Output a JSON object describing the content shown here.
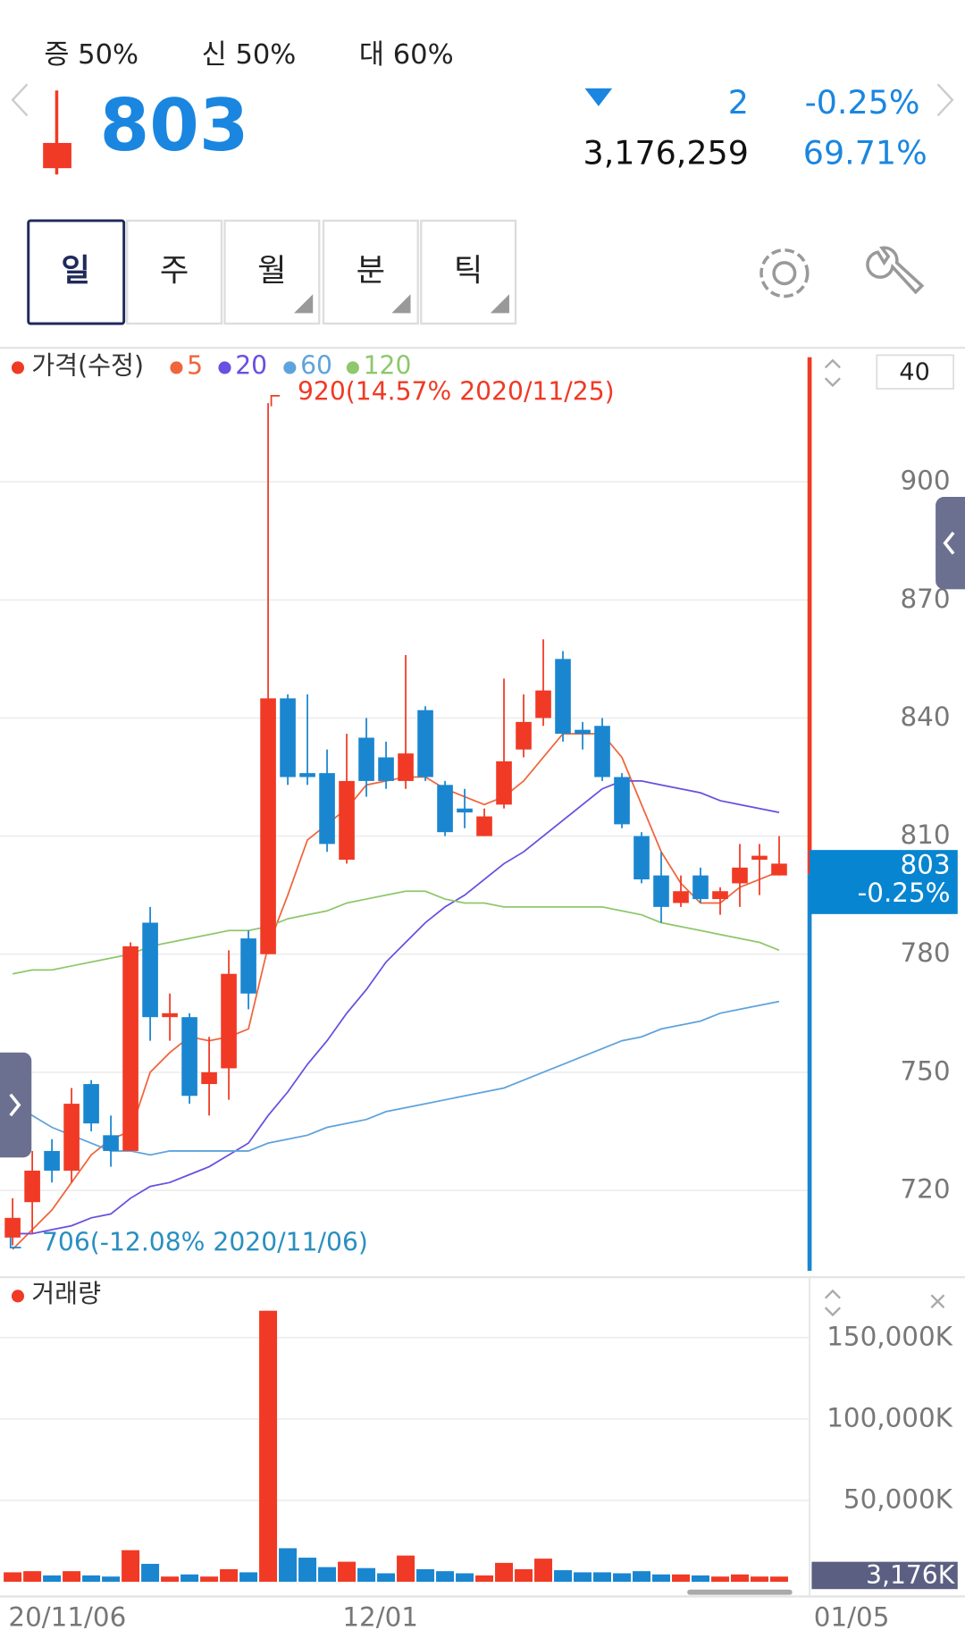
{
  "header": {
    "margins": [
      "증 50%",
      "신 50%",
      "대 60%"
    ],
    "price": "803",
    "change": "2",
    "change_pct": "-0.25%",
    "volume": "3,176,259",
    "ratio": "69.71%"
  },
  "tabs": [
    "일",
    "주",
    "월",
    "분",
    "틱"
  ],
  "chart_data": [
    {
      "type": "candlestick",
      "legend_title": "가격(수정)",
      "legend_color": "#f03a25",
      "up_color": "#f03a25",
      "down_color": "#1a86d0",
      "categories": [
        "20/11/06",
        null,
        null,
        null,
        null,
        null,
        null,
        null,
        null,
        null,
        null,
        null,
        null,
        null,
        null,
        null,
        null,
        "12/01",
        null,
        null,
        null,
        null,
        null,
        null,
        null,
        null,
        null,
        null,
        null,
        null,
        null,
        null,
        null,
        null,
        null,
        null,
        null,
        null,
        null,
        null
      ],
      "open": [
        708,
        717,
        730,
        725,
        747,
        734,
        730,
        788,
        764,
        764,
        747,
        751,
        784,
        780,
        845,
        826,
        826,
        804,
        835,
        830,
        824,
        842,
        823,
        817,
        810,
        818,
        832,
        840,
        855,
        837,
        838,
        825,
        810,
        800,
        793,
        800,
        794,
        798,
        804,
        800
      ],
      "high": [
        718,
        730,
        733,
        746,
        748,
        739,
        783,
        792,
        770,
        765,
        759,
        781,
        786,
        920,
        846,
        846,
        832,
        836,
        840,
        834,
        856,
        843,
        824,
        822,
        817,
        850,
        846,
        860,
        857,
        839,
        840,
        826,
        811,
        806,
        800,
        802,
        797,
        808,
        808,
        810
      ],
      "low": [
        706,
        709,
        722,
        722,
        735,
        726,
        730,
        758,
        758,
        742,
        739,
        743,
        766,
        780,
        823,
        823,
        806,
        803,
        820,
        822,
        822,
        824,
        810,
        812,
        810,
        817,
        830,
        838,
        834,
        832,
        824,
        812,
        798,
        788,
        792,
        793,
        790,
        792,
        795,
        800
      ],
      "close": [
        713,
        725,
        725,
        742,
        737,
        730,
        782,
        764,
        765,
        744,
        750,
        775,
        770,
        845,
        825,
        825,
        808,
        824,
        824,
        824,
        831,
        825,
        811,
        816,
        815,
        829,
        839,
        847,
        836,
        836,
        825,
        813,
        799,
        792,
        796,
        794,
        796,
        802,
        805,
        803
      ],
      "series": [
        {
          "name": "5",
          "color": "#f0653c",
          "values": [
            705,
            710,
            715,
            722,
            729,
            733,
            735,
            750,
            755,
            759,
            758,
            759,
            761,
            782,
            795,
            809,
            813,
            817,
            823,
            824,
            825,
            825,
            822,
            820,
            818,
            820,
            824,
            830,
            836,
            836,
            836,
            830,
            818,
            806,
            798,
            793,
            793,
            797,
            799,
            801
          ]
        },
        {
          "name": "20",
          "color": "#6a4fe0",
          "values": [
            709,
            709,
            710,
            711,
            713,
            714,
            718,
            721,
            722,
            724,
            726,
            729,
            732,
            739,
            745,
            752,
            758,
            765,
            771,
            778,
            783,
            788,
            792,
            795,
            799,
            803,
            806,
            810,
            814,
            818,
            822,
            824,
            824,
            823,
            822,
            821,
            819,
            818,
            817,
            816
          ]
        },
        {
          "name": "60",
          "color": "#5fa3dc",
          "values": [
            743,
            739,
            736,
            734,
            732,
            730,
            730,
            729,
            730,
            730,
            730,
            730,
            730,
            732,
            733,
            734,
            736,
            737,
            738,
            740,
            741,
            742,
            743,
            744,
            745,
            746,
            748,
            750,
            752,
            754,
            756,
            758,
            759,
            761,
            762,
            763,
            765,
            766,
            767,
            768
          ]
        },
        {
          "name": "120",
          "color": "#8fc76c",
          "values": [
            775,
            776,
            776,
            777,
            778,
            779,
            780,
            782,
            783,
            784,
            785,
            786,
            786,
            787,
            789,
            790,
            791,
            793,
            794,
            795,
            796,
            796,
            794,
            793,
            793,
            792,
            792,
            792,
            792,
            792,
            792,
            791,
            790,
            788,
            787,
            786,
            785,
            784,
            783,
            781
          ]
        }
      ],
      "ylim": [
        699,
        933
      ],
      "yticks": [
        720,
        750,
        780,
        810,
        840,
        870,
        900
      ],
      "grid": true,
      "annotations": [
        "920(14.57% 2020/11/25)",
        "706(-12.08% 2020/11/06)"
      ],
      "period": "40",
      "next_label": "01/05"
    },
    {
      "type": "bar",
      "legend_title": "거래량",
      "legend_color": "#f03a25",
      "values": [
        5800000,
        6500000,
        3900000,
        6500000,
        3900000,
        3200000,
        19400000,
        11000000,
        3200000,
        4500000,
        3200000,
        7700000,
        5800000,
        166500000,
        20600000,
        14800000,
        9000000,
        12300000,
        8400000,
        5200000,
        16100000,
        7700000,
        6500000,
        5200000,
        3900000,
        11600000,
        7700000,
        14200000,
        7100000,
        5800000,
        5800000,
        5200000,
        6500000,
        4500000,
        4500000,
        3900000,
        3200000,
        4500000,
        3200000,
        3176259
      ],
      "ylim": [
        0,
        168400000
      ],
      "yticks": [
        {
          "value": 50000000,
          "label": "50,000K"
        },
        {
          "value": 100000000,
          "label": "100,000K"
        },
        {
          "value": 150000000,
          "label": "150,000K"
        }
      ],
      "grid": true,
      "current_label": "3,176K"
    }
  ]
}
